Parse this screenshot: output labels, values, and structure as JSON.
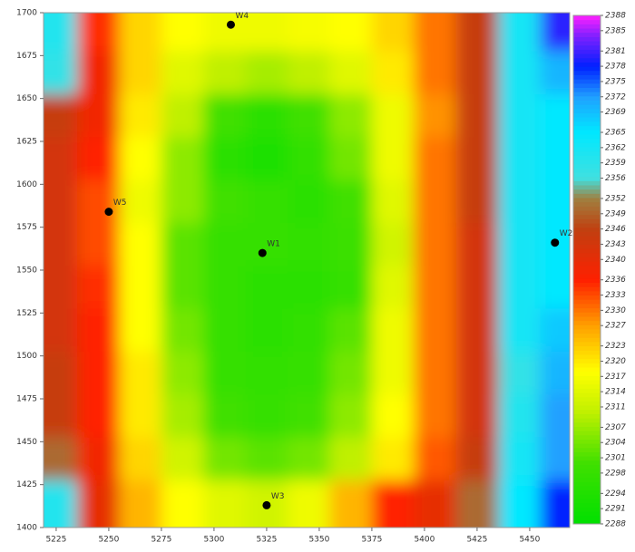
{
  "chart_data": {
    "type": "heatmap",
    "x": [
      5225,
      5245,
      5265,
      5285,
      5305,
      5325,
      5345,
      5365,
      5385,
      5405,
      5425,
      5445,
      5465
    ],
    "y": [
      1690,
      1665,
      1640,
      1615,
      1590,
      1565,
      1540,
      1515,
      1490,
      1465,
      1440,
      1415
    ],
    "z": [
      [
        2360,
        2335,
        2322,
        2318,
        2316,
        2316,
        2317,
        2318,
        2322,
        2330,
        2345,
        2362,
        2380
      ],
      [
        2358,
        2338,
        2322,
        2314,
        2310,
        2308,
        2310,
        2314,
        2320,
        2330,
        2345,
        2362,
        2370
      ],
      [
        2345,
        2338,
        2320,
        2310,
        2300,
        2296,
        2300,
        2306,
        2316,
        2328,
        2345,
        2362,
        2365
      ],
      [
        2343,
        2336,
        2318,
        2306,
        2296,
        2293,
        2297,
        2304,
        2316,
        2330,
        2345,
        2362,
        2365
      ],
      [
        2343,
        2333,
        2316,
        2306,
        2300,
        2298,
        2296,
        2300,
        2314,
        2330,
        2345,
        2362,
        2365
      ],
      [
        2343,
        2333,
        2318,
        2302,
        2298,
        2298,
        2297,
        2299,
        2312,
        2330,
        2343,
        2362,
        2365
      ],
      [
        2343,
        2335,
        2318,
        2302,
        2298,
        2296,
        2296,
        2298,
        2314,
        2330,
        2343,
        2362,
        2365
      ],
      [
        2343,
        2336,
        2318,
        2304,
        2298,
        2296,
        2297,
        2302,
        2316,
        2330,
        2343,
        2362,
        2368
      ],
      [
        2345,
        2336,
        2320,
        2306,
        2298,
        2297,
        2298,
        2304,
        2316,
        2330,
        2343,
        2358,
        2370
      ],
      [
        2345,
        2336,
        2320,
        2308,
        2300,
        2298,
        2300,
        2306,
        2318,
        2330,
        2343,
        2360,
        2372
      ],
      [
        2350,
        2338,
        2322,
        2312,
        2304,
        2302,
        2304,
        2310,
        2320,
        2332,
        2345,
        2362,
        2372
      ],
      [
        2360,
        2340,
        2325,
        2318,
        2314,
        2312,
        2316,
        2325,
        2336,
        2340,
        2350,
        2365,
        2378
      ]
    ],
    "xlim": [
      5219,
      5469
    ],
    "ylim": [
      1400,
      1700
    ],
    "xticks": [
      5225,
      5250,
      5275,
      5300,
      5325,
      5350,
      5375,
      5400,
      5425,
      5450
    ],
    "yticks": [
      1400,
      1425,
      1450,
      1475,
      1500,
      1525,
      1550,
      1575,
      1600,
      1625,
      1650,
      1675,
      1700
    ],
    "clim": [
      2288,
      2388
    ],
    "colorbar_ticks": [
      2388,
      2385,
      2381,
      2378,
      2375,
      2372,
      2369,
      2365,
      2362,
      2359,
      2356,
      2352,
      2349,
      2346,
      2343,
      2340,
      2336,
      2333,
      2330,
      2327,
      2323,
      2320,
      2317,
      2314,
      2311,
      2307,
      2304,
      2301,
      2298,
      2294,
      2291,
      2288
    ],
    "colorscale": [
      [
        2288,
        "#00e000"
      ],
      [
        2300,
        "#40e000"
      ],
      [
        2310,
        "#c0f000"
      ],
      [
        2318,
        "#ffff00"
      ],
      [
        2327,
        "#ffa000"
      ],
      [
        2336,
        "#ff2000"
      ],
      [
        2346,
        "#c04010"
      ],
      [
        2352,
        "#a08040"
      ],
      [
        2356,
        "#40e0e0"
      ],
      [
        2365,
        "#00e8ff"
      ],
      [
        2372,
        "#20a0ff"
      ],
      [
        2378,
        "#0020ff"
      ],
      [
        2384,
        "#8020ff"
      ],
      [
        2388,
        "#ff20ff"
      ]
    ],
    "wells": {
      "names": [
        "W4",
        "W5",
        "W1",
        "W2",
        "W3"
      ],
      "x": [
        5308,
        5250,
        5323,
        5462,
        5325
      ],
      "y": [
        1693,
        1584,
        1560,
        1566,
        1413
      ],
      "color": "#000000"
    }
  }
}
